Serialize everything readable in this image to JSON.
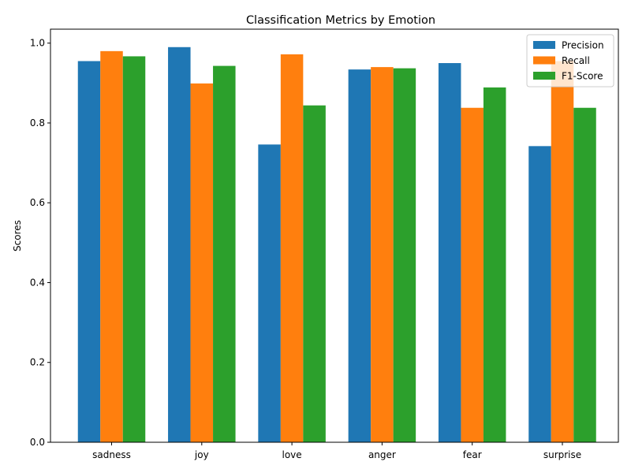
{
  "chart_data": {
    "type": "bar",
    "title": "Classification Metrics by Emotion",
    "xlabel": "",
    "ylabel": "Scores",
    "ylim": [
      0,
      1.035
    ],
    "yticks": [
      "0.0",
      "0.2",
      "0.4",
      "0.6",
      "0.8",
      "1.0"
    ],
    "grid": false,
    "legend_position": "top-right",
    "categories": [
      "sadness",
      "joy",
      "love",
      "anger",
      "fear",
      "surprise"
    ],
    "series": [
      {
        "name": "Precision",
        "color": "#1f77b4",
        "values": [
          0.955,
          0.99,
          0.746,
          0.934,
          0.95,
          0.742
        ]
      },
      {
        "name": "Recall",
        "color": "#ff7f0e",
        "values": [
          0.98,
          0.899,
          0.972,
          0.94,
          0.838,
          0.955
        ]
      },
      {
        "name": "F1-Score",
        "color": "#2ca02c",
        "values": [
          0.967,
          0.943,
          0.844,
          0.937,
          0.889,
          0.838
        ]
      }
    ]
  }
}
